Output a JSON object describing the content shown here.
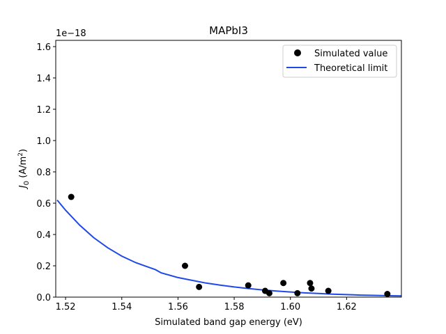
{
  "chart_data": {
    "type": "scatter",
    "title": "MAPbI3",
    "xlabel": "Simulated band gap energy (eV)",
    "ylabel_main": "J",
    "ylabel_sub": "0",
    "ylabel_unit": " (A/m",
    "ylabel_sup": "2",
    "ylabel_close": ")",
    "y_offset_text": "1e−18",
    "xlim": [
      1.5165,
      1.6395
    ],
    "ylim": [
      0,
      1.64
    ],
    "xticks": [
      1.52,
      1.54,
      1.56,
      1.58,
      1.6,
      1.62
    ],
    "xtick_labels": [
      "1.52",
      "1.54",
      "1.56",
      "1.58",
      "1.60",
      "1.62"
    ],
    "yticks": [
      0.0,
      0.2,
      0.4,
      0.6,
      0.8,
      1.0,
      1.2,
      1.4,
      1.6
    ],
    "ytick_labels": [
      "0.0",
      "0.2",
      "0.4",
      "0.6",
      "0.8",
      "1.0",
      "1.2",
      "1.4",
      "1.6"
    ],
    "legend_position": "top-right",
    "series": [
      {
        "name": "Simulated value",
        "kind": "scatter",
        "color": "#000000",
        "x": [
          1.522,
          1.5625,
          1.5675,
          1.585,
          1.591,
          1.5925,
          1.5975,
          1.6025,
          1.607,
          1.6075,
          1.6135,
          1.6345
        ],
        "y": [
          0.64,
          0.2,
          0.065,
          0.075,
          0.04,
          0.025,
          0.09,
          0.025,
          0.09,
          0.055,
          0.04,
          0.02
        ]
      },
      {
        "name": "Theoretical limit",
        "kind": "line",
        "color": "#1f48e8",
        "x": [
          1.517,
          1.52,
          1.525,
          1.53,
          1.535,
          1.54,
          1.545,
          1.55,
          1.552,
          1.554,
          1.56,
          1.565,
          1.57,
          1.575,
          1.58,
          1.585,
          1.59,
          1.595,
          1.6,
          1.605,
          1.61,
          1.615,
          1.62,
          1.625,
          1.63,
          1.635,
          1.6395
        ],
        "y": [
          0.62,
          0.555,
          0.46,
          0.38,
          0.315,
          0.262,
          0.22,
          0.188,
          0.175,
          0.155,
          0.125,
          0.107,
          0.09,
          0.077,
          0.065,
          0.055,
          0.046,
          0.039,
          0.033,
          0.027,
          0.023,
          0.019,
          0.016,
          0.013,
          0.011,
          0.009,
          0.008
        ]
      }
    ]
  }
}
